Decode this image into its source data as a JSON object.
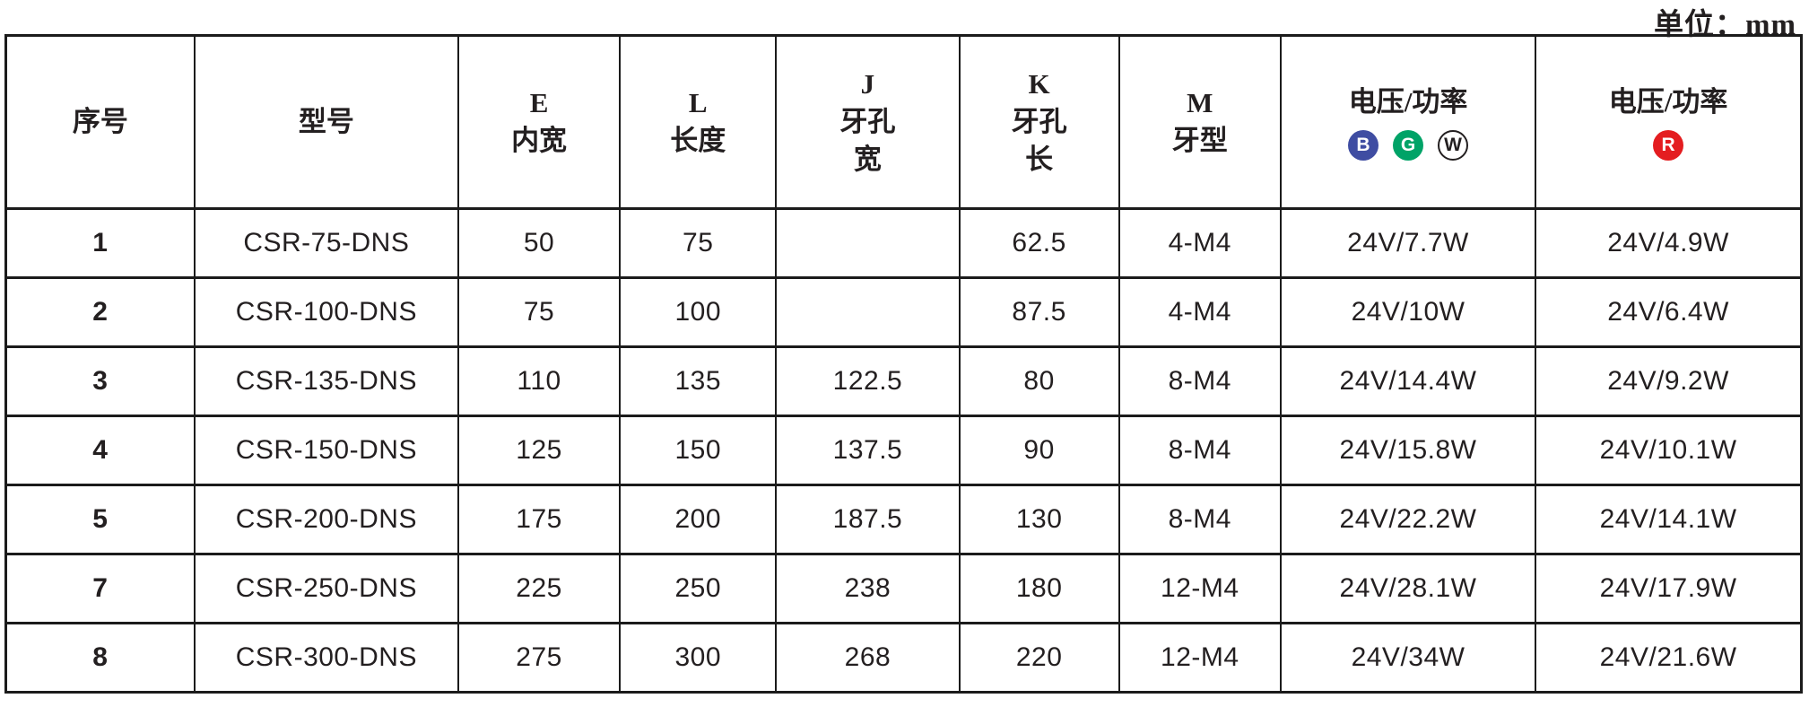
{
  "unit_label": "单位：mm",
  "colors": {
    "border": "#1b1b1b",
    "text": "#231f20",
    "badge_b_bg": "#3f4da2",
    "badge_b_fg": "#ffffff",
    "badge_g_bg": "#00a367",
    "badge_g_fg": "#ffffff",
    "badge_w_bg": "#ffffff",
    "badge_w_fg": "#231f20",
    "badge_r_bg": "#e41d20",
    "badge_r_fg": "#ffffff"
  },
  "table": {
    "headers": [
      {
        "id": "index",
        "text": "序号"
      },
      {
        "id": "model",
        "text": "型号"
      },
      {
        "id": "e_width",
        "text": "E\n内宽"
      },
      {
        "id": "l_length",
        "text": "L\n长度"
      },
      {
        "id": "j_width",
        "text": "J\n牙孔\n宽"
      },
      {
        "id": "k_length",
        "text": "K\n牙孔\n长"
      },
      {
        "id": "m_type",
        "text": "M\n牙型"
      },
      {
        "id": "power_bgw",
        "text": "电压/功率",
        "badges": [
          "B",
          "G",
          "W"
        ]
      },
      {
        "id": "power_r",
        "text": "电压/功率",
        "badges": [
          "R"
        ]
      }
    ],
    "rows": [
      [
        "1",
        "CSR-75-DNS",
        "50",
        "75",
        "",
        "62.5",
        "4-M4",
        "24V/7.7W",
        "24V/4.9W"
      ],
      [
        "2",
        "CSR-100-DNS",
        "75",
        "100",
        "",
        "87.5",
        "4-M4",
        "24V/10W",
        "24V/6.4W"
      ],
      [
        "3",
        "CSR-135-DNS",
        "110",
        "135",
        "122.5",
        "80",
        "8-M4",
        "24V/14.4W",
        "24V/9.2W"
      ],
      [
        "4",
        "CSR-150-DNS",
        "125",
        "150",
        "137.5",
        "90",
        "8-M4",
        "24V/15.8W",
        "24V/10.1W"
      ],
      [
        "5",
        "CSR-200-DNS",
        "175",
        "200",
        "187.5",
        "130",
        "8-M4",
        "24V/22.2W",
        "24V/14.1W"
      ],
      [
        "7",
        "CSR-250-DNS",
        "225",
        "250",
        "238",
        "180",
        "12-M4",
        "24V/28.1W",
        "24V/17.9W"
      ],
      [
        "8",
        "CSR-300-DNS",
        "275",
        "300",
        "268",
        "220",
        "12-M4",
        "24V/34W",
        "24V/21.6W"
      ]
    ]
  }
}
